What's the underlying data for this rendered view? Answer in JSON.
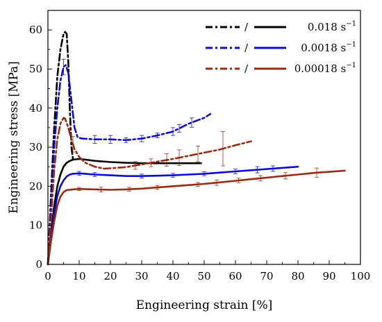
{
  "chart_data": {
    "type": "line",
    "xlabel": "Engineering strain [%]",
    "ylabel": "Engineering stress [MPa]",
    "xlim": [
      0,
      100
    ],
    "ylim": [
      0,
      65
    ],
    "x_ticks": [
      0,
      10,
      20,
      30,
      40,
      50,
      60,
      70,
      80,
      90,
      100
    ],
    "y_ticks": [
      0,
      10,
      20,
      30,
      40,
      50,
      60
    ],
    "grid": false,
    "legend_position": "top-right",
    "legend": [
      {
        "separator": "/",
        "rate_value": "0.018",
        "rate_unit": "s",
        "rate_exp": "−1",
        "color": "#000000"
      },
      {
        "separator": "/",
        "rate_value": "0.0018",
        "rate_unit": "s",
        "rate_exp": "−1",
        "color": "#0b0bd8"
      },
      {
        "separator": "/",
        "rate_value": "0.00018",
        "rate_unit": "s",
        "rate_exp": "−1",
        "color": "#9a2a10"
      }
    ],
    "series": [
      {
        "group": 0,
        "style": "dashdot",
        "color": "#000000",
        "points": [
          [
            0,
            0
          ],
          [
            1,
            18
          ],
          [
            2,
            35
          ],
          [
            3,
            48
          ],
          [
            4,
            55
          ],
          [
            5,
            59
          ],
          [
            5.5,
            59.5
          ],
          [
            6,
            59
          ],
          [
            6.5,
            52
          ],
          [
            7,
            40
          ],
          [
            7.5,
            30
          ],
          [
            8,
            27
          ]
        ]
      },
      {
        "group": 0,
        "style": "solid",
        "color": "#000000",
        "points": [
          [
            0,
            0
          ],
          [
            1,
            8
          ],
          [
            2,
            15
          ],
          [
            3,
            20
          ],
          [
            4,
            23
          ],
          [
            5,
            25
          ],
          [
            6,
            26
          ],
          [
            7,
            26.5
          ],
          [
            8,
            26.8
          ],
          [
            10,
            27
          ],
          [
            12,
            26.8
          ],
          [
            15,
            26.5
          ],
          [
            20,
            26.2
          ],
          [
            25,
            26
          ],
          [
            30,
            25.9
          ],
          [
            35,
            25.9
          ],
          [
            40,
            25.9
          ],
          [
            45,
            25.9
          ],
          [
            49,
            25.9
          ]
        ]
      },
      {
        "group": 1,
        "style": "dashdot",
        "color": "#0b0bd8",
        "points": [
          [
            0,
            0
          ],
          [
            1,
            15
          ],
          [
            2,
            30
          ],
          [
            3,
            40
          ],
          [
            4,
            47
          ],
          [
            5,
            50.5
          ],
          [
            5.7,
            51
          ],
          [
            6.5,
            49
          ],
          [
            7.5,
            42
          ],
          [
            8.5,
            35
          ],
          [
            9.5,
            32.5
          ],
          [
            11,
            32.2
          ],
          [
            15,
            32
          ],
          [
            20,
            32
          ],
          [
            25,
            31.8
          ],
          [
            30,
            32.2
          ],
          [
            35,
            33
          ],
          [
            40,
            34
          ],
          [
            45,
            36
          ],
          [
            50,
            37.5
          ],
          [
            52,
            38.5
          ]
        ],
        "errors": [
          [
            5,
            2
          ],
          [
            15,
            1
          ],
          [
            20,
            1
          ],
          [
            25,
            0.6
          ],
          [
            30,
            0.8
          ],
          [
            35,
            0.6
          ],
          [
            40,
            1
          ],
          [
            42,
            1
          ],
          [
            46,
            1.2
          ]
        ]
      },
      {
        "group": 1,
        "style": "solid",
        "color": "#0b0bd8",
        "points": [
          [
            0,
            0
          ],
          [
            1,
            7
          ],
          [
            2,
            13
          ],
          [
            3,
            17.5
          ],
          [
            4,
            20
          ],
          [
            5,
            21.5
          ],
          [
            6,
            22.5
          ],
          [
            7,
            23
          ],
          [
            8,
            23.2
          ],
          [
            10,
            23.3
          ],
          [
            15,
            23
          ],
          [
            20,
            22.8
          ],
          [
            25,
            22.6
          ],
          [
            30,
            22.6
          ],
          [
            35,
            22.7
          ],
          [
            40,
            22.8
          ],
          [
            45,
            23
          ],
          [
            50,
            23.2
          ],
          [
            55,
            23.5
          ],
          [
            60,
            23.8
          ],
          [
            65,
            24.1
          ],
          [
            70,
            24.4
          ],
          [
            75,
            24.7
          ],
          [
            80,
            25
          ]
        ],
        "errors": [
          [
            10,
            0.5
          ],
          [
            15,
            0.5
          ],
          [
            30,
            0.5
          ],
          [
            40,
            0.5
          ],
          [
            50,
            0.5
          ],
          [
            60,
            0.6
          ],
          [
            67,
            0.8
          ],
          [
            72,
            0.7
          ]
        ]
      },
      {
        "group": 2,
        "style": "dashdot",
        "color": "#9a2a10",
        "points": [
          [
            0,
            0
          ],
          [
            1,
            12
          ],
          [
            2,
            24
          ],
          [
            3,
            32
          ],
          [
            4,
            36
          ],
          [
            5,
            37.5
          ],
          [
            5.5,
            37.3
          ],
          [
            6.5,
            35
          ],
          [
            7.5,
            32
          ],
          [
            8.5,
            29.5
          ],
          [
            10,
            27.5
          ],
          [
            12,
            26
          ],
          [
            15,
            25
          ],
          [
            18,
            24.5
          ],
          [
            20,
            24.6
          ],
          [
            25,
            24.9
          ],
          [
            30,
            25.6
          ],
          [
            35,
            26.3
          ],
          [
            40,
            27
          ],
          [
            45,
            27.8
          ],
          [
            50,
            28.6
          ],
          [
            55,
            29.4
          ],
          [
            60,
            30.5
          ],
          [
            65,
            31.5
          ]
        ],
        "errors": [
          [
            8,
            2
          ],
          [
            28,
            1
          ],
          [
            33,
            1
          ],
          [
            38,
            1.6
          ],
          [
            42,
            2
          ],
          [
            48,
            2
          ],
          [
            56,
            4.4
          ]
        ]
      },
      {
        "group": 2,
        "style": "solid",
        "color": "#9a2a10",
        "points": [
          [
            0,
            0
          ],
          [
            1,
            6
          ],
          [
            2,
            11
          ],
          [
            3,
            15
          ],
          [
            4,
            17.3
          ],
          [
            5,
            18.5
          ],
          [
            6,
            19
          ],
          [
            8,
            19.2
          ],
          [
            10,
            19.3
          ],
          [
            15,
            19.2
          ],
          [
            20,
            19.1
          ],
          [
            25,
            19.2
          ],
          [
            30,
            19.4
          ],
          [
            35,
            19.7
          ],
          [
            40,
            20
          ],
          [
            45,
            20.3
          ],
          [
            50,
            20.6
          ],
          [
            55,
            21
          ],
          [
            60,
            21.4
          ],
          [
            65,
            21.8
          ],
          [
            70,
            22.2
          ],
          [
            75,
            22.6
          ],
          [
            80,
            23
          ],
          [
            85,
            23.4
          ],
          [
            90,
            23.7
          ],
          [
            95,
            24
          ]
        ],
        "errors": [
          [
            10,
            0.4
          ],
          [
            17,
            0.6
          ],
          [
            26,
            0.5
          ],
          [
            35,
            0.5
          ],
          [
            48,
            0.5
          ],
          [
            54,
            0.7
          ],
          [
            61,
            0.6
          ],
          [
            68,
            0.7
          ],
          [
            76,
            0.8
          ],
          [
            86,
            1.2
          ]
        ]
      }
    ]
  }
}
